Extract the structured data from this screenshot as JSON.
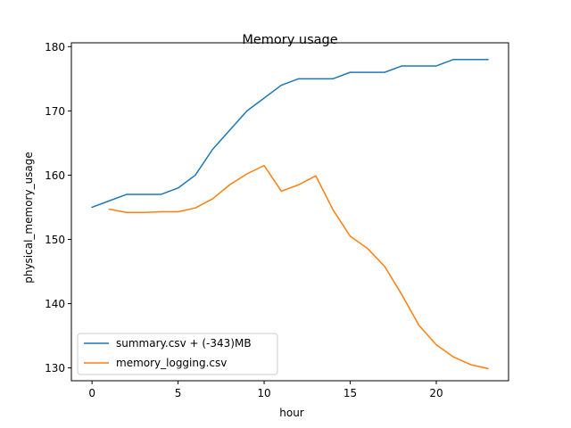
{
  "chart_data": {
    "type": "line",
    "title": "Memory usage",
    "xlabel": "hour",
    "ylabel": "physical_memory_usage",
    "xlim": [
      -1.2,
      24.2
    ],
    "ylim": [
      128,
      180.6
    ],
    "xticks": [
      0,
      5,
      10,
      15,
      20
    ],
    "yticks": [
      130,
      140,
      150,
      160,
      170,
      180
    ],
    "grid": false,
    "legend_position": "lower-left",
    "series": [
      {
        "name": "summary.csv + (-343)MB",
        "color": "#1f77b4",
        "x": [
          0,
          1,
          2,
          3,
          4,
          5,
          6,
          7,
          8,
          9,
          10,
          11,
          12,
          13,
          14,
          15,
          16,
          17,
          18,
          19,
          20,
          21,
          22,
          23
        ],
        "y": [
          155,
          156,
          157,
          157,
          157,
          158,
          160,
          164,
          167,
          170,
          172,
          174,
          175,
          175,
          175,
          176,
          176,
          176,
          177,
          177,
          177,
          178,
          178,
          178
        ]
      },
      {
        "name": "memory_logging.csv",
        "color": "#ff7f0e",
        "x": [
          1,
          2,
          3,
          4,
          5,
          6,
          7,
          8,
          9,
          10,
          11,
          12,
          13,
          14,
          15,
          16,
          17,
          18,
          19,
          20,
          21,
          22,
          23
        ],
        "y": [
          154.7,
          154.2,
          154.2,
          154.3,
          154.3,
          154.9,
          156.3,
          158.5,
          160.2,
          161.5,
          157.5,
          158.5,
          159.9,
          154.6,
          150.5,
          148.6,
          145.8,
          141.4,
          136.6,
          133.6,
          131.7,
          130.5,
          129.9
        ]
      }
    ]
  }
}
